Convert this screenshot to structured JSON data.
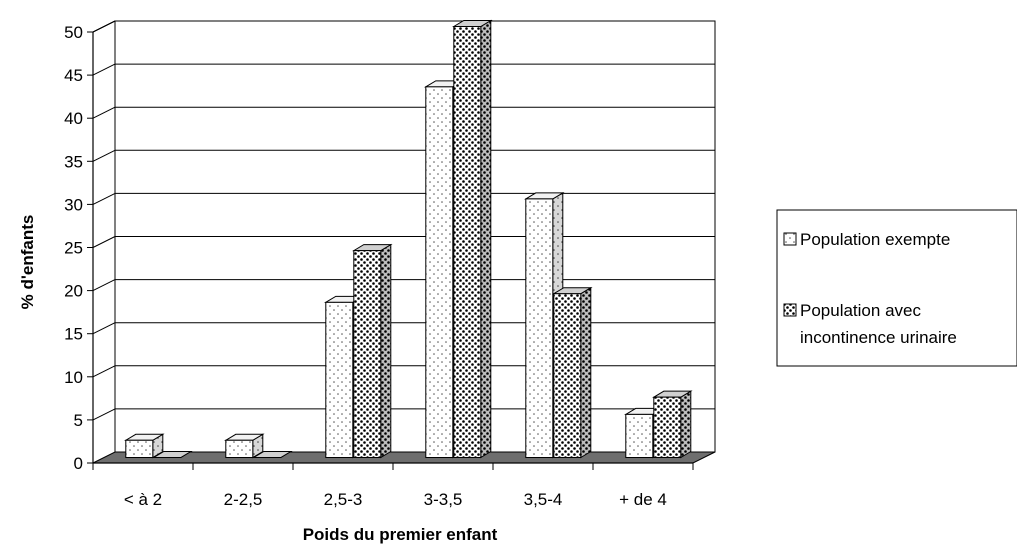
{
  "chart_data": {
    "type": "bar",
    "title": "",
    "xlabel": "Poids du premier enfant",
    "ylabel": "% d'enfants",
    "categories": [
      "< à 2",
      "2-2,5",
      "2,5-3",
      "3-3,5",
      "3,5-4",
      "+ de 4"
    ],
    "series": [
      {
        "name": "Population exempte",
        "values": [
          2,
          2,
          18,
          43,
          30,
          5
        ]
      },
      {
        "name": "Population avec incontinence urinaire",
        "values": [
          0,
          0,
          24,
          50,
          19,
          7
        ]
      }
    ],
    "ylim": [
      0,
      50
    ],
    "yticks": [
      0,
      5,
      10,
      15,
      20,
      25,
      30,
      35,
      40,
      45,
      50
    ],
    "grid": true,
    "legend_position": "right",
    "legend_lines": [
      [
        "Population exempte"
      ],
      [
        "Population avec",
        "incontinence urinaire"
      ]
    ]
  }
}
